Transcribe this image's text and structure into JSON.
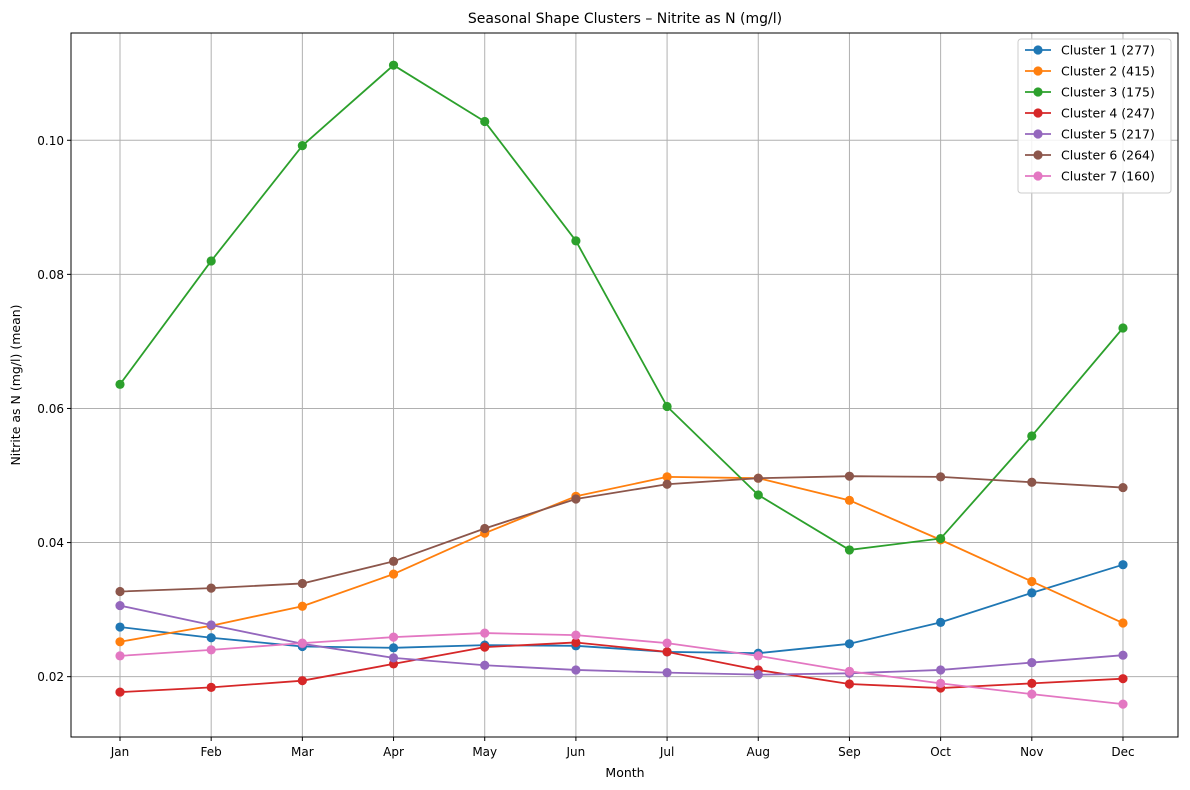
{
  "chart_data": {
    "type": "line",
    "title": "Seasonal Shape Clusters – Nitrite as N (mg/l)",
    "xlabel": "Month",
    "ylabel": "Nitrite as N (mg/l) (mean)",
    "categories": [
      "Jan",
      "Feb",
      "Mar",
      "Apr",
      "May",
      "Jun",
      "Jul",
      "Aug",
      "Sep",
      "Oct",
      "Nov",
      "Dec"
    ],
    "ylim": [
      0.011,
      0.116
    ],
    "yticks": [
      0.02,
      0.04,
      0.06,
      0.08,
      0.1
    ],
    "ytick_labels": [
      "0.02",
      "0.04",
      "0.06",
      "0.08",
      "0.10"
    ],
    "grid": true,
    "legend_position": "upper right",
    "series": [
      {
        "name": "Cluster 1 (277)",
        "color": "#1f77b4",
        "values": [
          0.0274,
          0.0258,
          0.0245,
          0.0243,
          0.0247,
          0.0246,
          0.0237,
          0.0235,
          0.0249,
          0.0281,
          0.0325,
          0.0367
        ]
      },
      {
        "name": "Cluster 2 (415)",
        "color": "#ff7f0e",
        "values": [
          0.0252,
          0.0276,
          0.0305,
          0.0353,
          0.0414,
          0.0469,
          0.0498,
          0.0496,
          0.0463,
          0.0404,
          0.0342,
          0.028
        ]
      },
      {
        "name": "Cluster 3 (175)",
        "color": "#2ca02c",
        "values": [
          0.0636,
          0.082,
          0.0992,
          0.1112,
          0.1028,
          0.085,
          0.0603,
          0.0471,
          0.0389,
          0.0406,
          0.0559,
          0.072
        ]
      },
      {
        "name": "Cluster 4 (247)",
        "color": "#d62728",
        "values": [
          0.0177,
          0.0184,
          0.0194,
          0.0219,
          0.0244,
          0.0251,
          0.0237,
          0.021,
          0.0189,
          0.0183,
          0.019,
          0.0197
        ]
      },
      {
        "name": "Cluster 5 (217)",
        "color": "#9467bd",
        "values": [
          0.0306,
          0.0277,
          0.0249,
          0.0228,
          0.0217,
          0.021,
          0.0206,
          0.0203,
          0.0205,
          0.021,
          0.0221,
          0.0232
        ]
      },
      {
        "name": "Cluster 6 (264)",
        "color": "#8c564b",
        "values": [
          0.0327,
          0.0332,
          0.0339,
          0.0372,
          0.0421,
          0.0465,
          0.0487,
          0.0496,
          0.0499,
          0.0498,
          0.049,
          0.0482
        ]
      },
      {
        "name": "Cluster 7 (160)",
        "color": "#e377c2",
        "values": [
          0.0231,
          0.024,
          0.025,
          0.0259,
          0.0265,
          0.0262,
          0.025,
          0.0231,
          0.0208,
          0.019,
          0.0174,
          0.0159
        ]
      }
    ]
  }
}
